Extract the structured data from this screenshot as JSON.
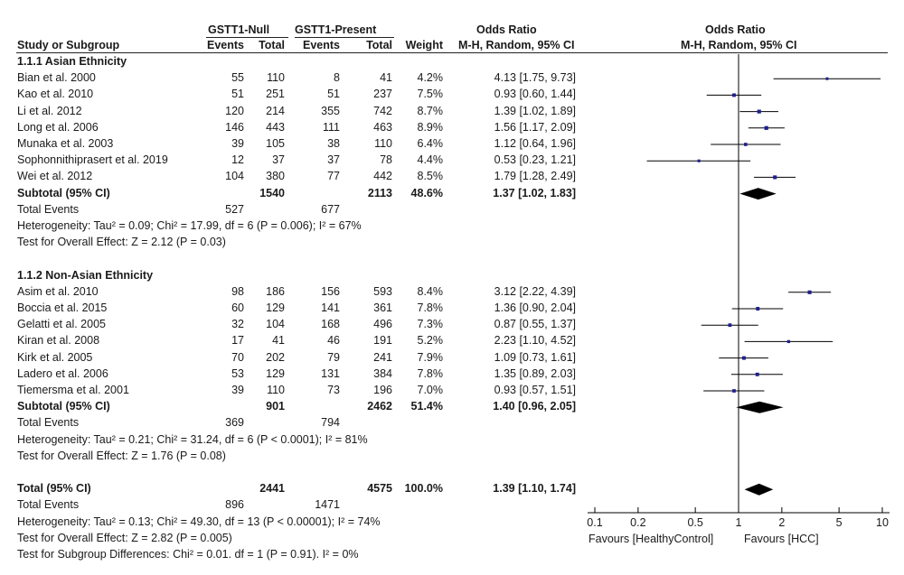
{
  "header": {
    "group1": "GSTT1-Null",
    "group2": "GSTT1-Present",
    "or_title_left": "Odds Ratio",
    "or_title_right": "Odds Ratio",
    "col_study": "Study or Subgroup",
    "col_events1": "Events",
    "col_total1": "Total",
    "col_events2": "Events",
    "col_total2": "Total",
    "col_weight": "Weight",
    "col_method_left": "M-H, Random, 95% CI",
    "col_method_right": "M-H, Random, 95% CI"
  },
  "rows": [
    {
      "kind": "heading",
      "label": "1.1.1 Asian Ethnicity"
    },
    {
      "kind": "study",
      "label": "Bian et al. 2000",
      "e1": "55",
      "t1": "110",
      "e2": "8",
      "t2": "41",
      "w": "4.2%",
      "ci": "4.13 [1.75, 9.73]",
      "or": 4.13,
      "lo": 1.75,
      "hi": 9.73
    },
    {
      "kind": "study",
      "label": "Kao et al. 2010",
      "e1": "51",
      "t1": "251",
      "e2": "51",
      "t2": "237",
      "w": "7.5%",
      "ci": "0.93 [0.60, 1.44]",
      "or": 0.93,
      "lo": 0.6,
      "hi": 1.44
    },
    {
      "kind": "study",
      "label": "Li et al. 2012",
      "e1": "120",
      "t1": "214",
      "e2": "355",
      "t2": "742",
      "w": "8.7%",
      "ci": "1.39 [1.02, 1.89]",
      "or": 1.39,
      "lo": 1.02,
      "hi": 1.89
    },
    {
      "kind": "study",
      "label": "Long et al. 2006",
      "e1": "146",
      "t1": "443",
      "e2": "111",
      "t2": "463",
      "w": "8.9%",
      "ci": "1.56 [1.17, 2.09]",
      "or": 1.56,
      "lo": 1.17,
      "hi": 2.09
    },
    {
      "kind": "study",
      "label": "Munaka et al. 2003",
      "e1": "39",
      "t1": "105",
      "e2": "38",
      "t2": "110",
      "w": "6.4%",
      "ci": "1.12 [0.64, 1.96]",
      "or": 1.12,
      "lo": 0.64,
      "hi": 1.96
    },
    {
      "kind": "study",
      "label": "Sophonnithiprasert et al. 2019",
      "e1": "12",
      "t1": "37",
      "e2": "37",
      "t2": "78",
      "w": "4.4%",
      "ci": "0.53 [0.23, 1.21]",
      "or": 0.53,
      "lo": 0.23,
      "hi": 1.21
    },
    {
      "kind": "study",
      "label": "Wei et al. 2012",
      "e1": "104",
      "t1": "380",
      "e2": "77",
      "t2": "442",
      "w": "8.5%",
      "ci": "1.79 [1.28, 2.49]",
      "or": 1.79,
      "lo": 1.28,
      "hi": 2.49
    },
    {
      "kind": "subtotal",
      "label": "Subtotal (95% CI)",
      "t1": "1540",
      "t2": "2113",
      "w": "48.6%",
      "ci": "1.37 [1.02, 1.83]",
      "or": 1.37,
      "lo": 1.02,
      "hi": 1.83
    },
    {
      "kind": "events",
      "label": "Total Events",
      "e1": "527",
      "e2": "677"
    },
    {
      "kind": "note",
      "label": "Heterogeneity: Tau² = 0.09; Chi² = 17.99, df = 6 (P = 0.006); I² = 67%"
    },
    {
      "kind": "note",
      "label": "Test for Overall Effect: Z = 2.12 (P = 0.03)"
    },
    {
      "kind": "blank"
    },
    {
      "kind": "heading",
      "label": "1.1.2 Non-Asian Ethnicity"
    },
    {
      "kind": "study",
      "label": "Asim et al. 2010",
      "e1": "98",
      "t1": "186",
      "e2": "156",
      "t2": "593",
      "w": "8.4%",
      "ci": "3.12 [2.22, 4.39]",
      "or": 3.12,
      "lo": 2.22,
      "hi": 4.39
    },
    {
      "kind": "study",
      "label": "Boccia et al. 2015",
      "e1": "60",
      "t1": "129",
      "e2": "141",
      "t2": "361",
      "w": "7.8%",
      "ci": "1.36 [0.90, 2.04]",
      "or": 1.36,
      "lo": 0.9,
      "hi": 2.04
    },
    {
      "kind": "study",
      "label": "Gelatti et al. 2005",
      "e1": "32",
      "t1": "104",
      "e2": "168",
      "t2": "496",
      "w": "7.3%",
      "ci": "0.87 [0.55, 1.37]",
      "or": 0.87,
      "lo": 0.55,
      "hi": 1.37
    },
    {
      "kind": "study",
      "label": "Kiran et al. 2008",
      "e1": "17",
      "t1": "41",
      "e2": "46",
      "t2": "191",
      "w": "5.2%",
      "ci": "2.23 [1.10, 4.52]",
      "or": 2.23,
      "lo": 1.1,
      "hi": 4.52
    },
    {
      "kind": "study",
      "label": "Kirk et al. 2005",
      "e1": "70",
      "t1": "202",
      "e2": "79",
      "t2": "241",
      "w": "7.9%",
      "ci": "1.09 [0.73, 1.61]",
      "or": 1.09,
      "lo": 0.73,
      "hi": 1.61
    },
    {
      "kind": "study",
      "label": "Ladero et al. 2006",
      "e1": "53",
      "t1": "129",
      "e2": "131",
      "t2": "384",
      "w": "7.8%",
      "ci": "1.35 [0.89, 2.03]",
      "or": 1.35,
      "lo": 0.89,
      "hi": 2.03
    },
    {
      "kind": "study",
      "label": "Tiemersma et al. 2001",
      "e1": "39",
      "t1": "110",
      "e2": "73",
      "t2": "196",
      "w": "7.0%",
      "ci": "0.93 [0.57, 1.51]",
      "or": 0.93,
      "lo": 0.57,
      "hi": 1.51
    },
    {
      "kind": "subtotal",
      "label": "Subtotal (95% CI)",
      "t1": "901",
      "t2": "2462",
      "w": "51.4%",
      "ci": "1.40 [0.96, 2.05]",
      "or": 1.4,
      "lo": 0.96,
      "hi": 2.05
    },
    {
      "kind": "events",
      "label": "Total Events",
      "e1": "369",
      "e2": "794"
    },
    {
      "kind": "note",
      "label": "Heterogeneity: Tau² = 0.21; Chi² = 31.24, df = 6 (P < 0.0001); I² = 81%"
    },
    {
      "kind": "note",
      "label": "Test for Overall Effect: Z = 1.76 (P = 0.08)"
    },
    {
      "kind": "blank"
    },
    {
      "kind": "subtotal",
      "label": "Total (95% CI)",
      "t1": "2441",
      "t2": "4575",
      "w": "100.0%",
      "ci": "1.39 [1.10, 1.74]",
      "or": 1.39,
      "lo": 1.1,
      "hi": 1.74
    },
    {
      "kind": "events",
      "label": "Total Events",
      "e1": "896",
      "e2": "1471"
    },
    {
      "kind": "note",
      "label": "Heterogeneity: Tau² = 0.13; Chi² = 49.30, df = 13 (P < 0.00001); I² = 74%"
    },
    {
      "kind": "note",
      "label": "Test for Overall Effect: Z = 2.82 (P = 0.005)"
    },
    {
      "kind": "note",
      "label": "Test for Subgroup Differences: Chi² = 0.01. df = 1 (P = 0.91). I² = 0%"
    }
  ],
  "axis": {
    "ticks": [
      0.1,
      0.2,
      0.5,
      1,
      2,
      5,
      10
    ],
    "tick_labels": [
      "0.1",
      "0.2",
      "0.5",
      "1",
      "2",
      "5",
      "10"
    ],
    "favours_left": "Favours [HealthyControl]",
    "favours_right": "Favours [HCC]"
  },
  "chart_data": {
    "type": "forest",
    "xscale": "log",
    "xlim": [
      0.1,
      10
    ],
    "reference_line": 1,
    "colors": {
      "point": "#1f1f8f",
      "diamond": "#000000",
      "line": "#000000"
    },
    "title": "",
    "xlabel": "",
    "ylabel": ""
  }
}
